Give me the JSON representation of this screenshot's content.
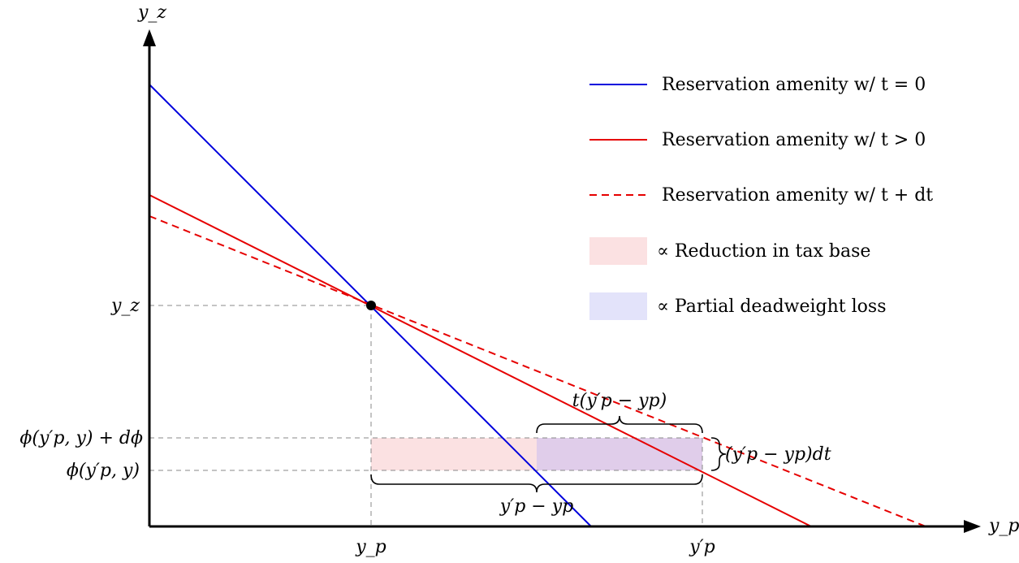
{
  "axes": {
    "x_label": "y_p",
    "y_label": "y_z"
  },
  "y_ticks": {
    "yz": "y_z",
    "phi_plus": "ϕ(y′p, y) + dϕ",
    "phi": "ϕ(y′p, y)"
  },
  "x_ticks": {
    "yp": "y_p",
    "yp_prime": "y′p"
  },
  "annotations": {
    "tax_brace": "t(y′p − yp)",
    "dt_brace": "(y′p − yp)dt",
    "bottom_brace": "y′p − yp"
  },
  "legend": [
    {
      "label": "Reservation amenity w/ t = 0",
      "color": "#0000dd",
      "style": "solid",
      "kind": "line"
    },
    {
      "label": "Reservation amenity w/ t > 0",
      "color": "#e60000",
      "style": "solid",
      "kind": "line"
    },
    {
      "label": "Reservation amenity w/ t + dt",
      "color": "#e60000",
      "style": "dashed",
      "kind": "line"
    },
    {
      "label": "∝ Reduction in tax base",
      "color": "#fbe1e2",
      "kind": "swatch"
    },
    {
      "label": "∝ Partial deadweight loss",
      "color": "#e3e3fa",
      "kind": "swatch"
    }
  ],
  "colors": {
    "blue": "#0000dd",
    "red": "#e60000",
    "pink_region": "#fbe1e2",
    "purple_region": "#e0cdea"
  }
}
